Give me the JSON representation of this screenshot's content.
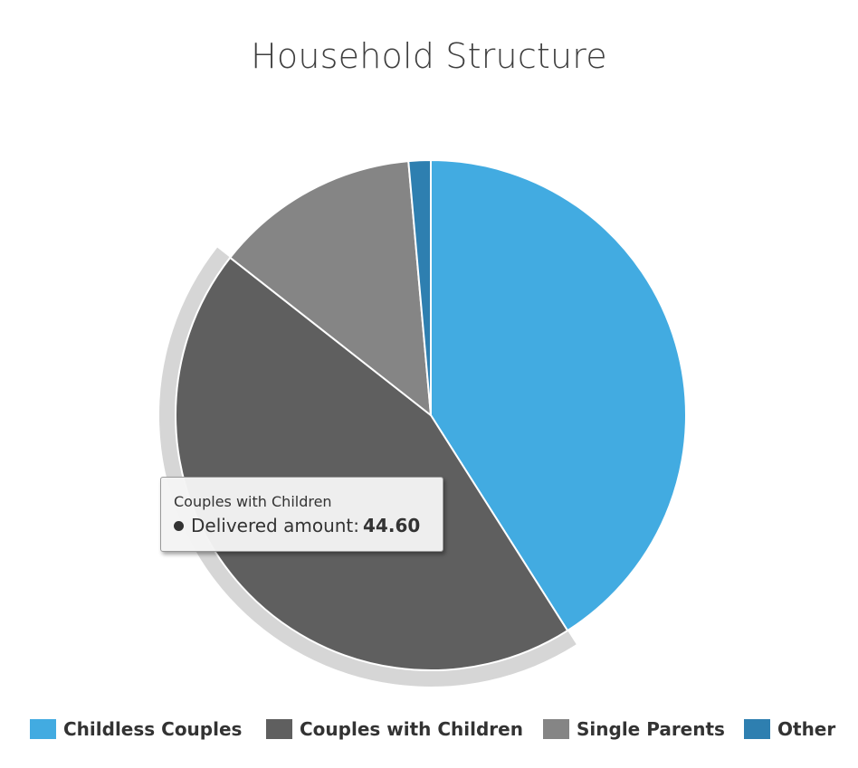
{
  "chart_data": {
    "type": "pie",
    "title": "Household Structure",
    "categories": [
      "Childless Couples",
      "Couples with Children",
      "Single Parents",
      "Other"
    ],
    "series": [
      {
        "name": "Delivered amount",
        "values": [
          41.0,
          44.6,
          13.0,
          1.4
        ]
      }
    ],
    "colors": [
      "#42abe1",
      "#5f5f5f",
      "#858585",
      "#2e7fb0"
    ],
    "highlighted": "Couples with Children",
    "legend_position": "bottom",
    "tooltip": {
      "category": "Couples with Children",
      "series_name": "Delivered amount:",
      "value": "44.60"
    }
  }
}
